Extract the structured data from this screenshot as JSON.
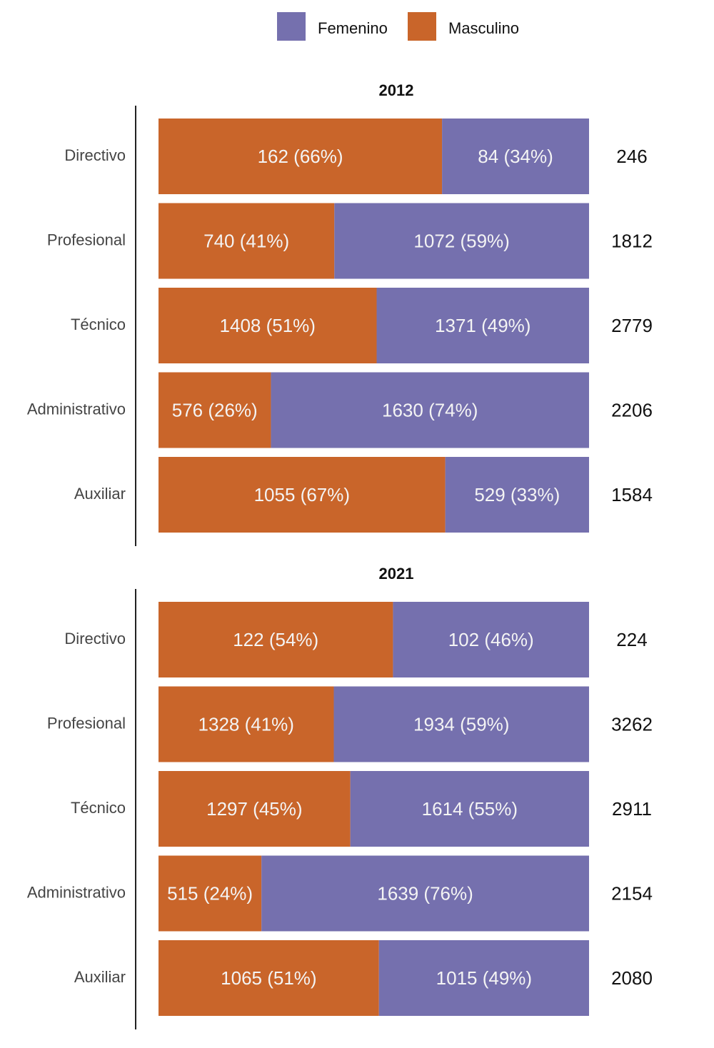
{
  "chart_data": [
    {
      "type": "bar",
      "title": "2012",
      "categories": [
        "Directivo",
        "Profesional",
        "Técnico",
        "Administrativo",
        "Auxiliar"
      ],
      "series": [
        {
          "name": "Femenino",
          "color": "#7570ae",
          "values": [
            84,
            1072,
            1371,
            1630,
            529
          ],
          "value_labels": [
            "84 (34%)",
            "1072 (59%)",
            "1371 (49%)",
            "1630 (74%)",
            "529 (33%)"
          ]
        },
        {
          "name": "Masculino",
          "color": "#c9652a",
          "values": [
            162,
            740,
            1408,
            576,
            1055
          ],
          "value_labels": [
            "162 (66%)",
            "740 (41%)",
            "1408 (51%)",
            "576 (26%)",
            "1055 (67%)"
          ]
        }
      ],
      "totals": [
        246,
        1812,
        2779,
        2206,
        1584
      ]
    },
    {
      "type": "bar",
      "title": "2021",
      "categories": [
        "Directivo",
        "Profesional",
        "Técnico",
        "Administrativo",
        "Auxiliar"
      ],
      "series": [
        {
          "name": "Femenino",
          "color": "#7570ae",
          "values": [
            102,
            1934,
            1614,
            1639,
            1015
          ],
          "value_labels": [
            "102 (46%)",
            "1934 (59%)",
            "1614 (55%)",
            "1639 (76%)",
            "1015 (49%)"
          ]
        },
        {
          "name": "Masculino",
          "color": "#c9652a",
          "values": [
            122,
            1328,
            1297,
            515,
            1065
          ],
          "value_labels": [
            "122 (54%)",
            "1328 (41%)",
            "1297 (45%)",
            "515 (24%)",
            "1065 (51%)"
          ]
        }
      ],
      "totals": [
        224,
        3262,
        2911,
        2154,
        2080
      ]
    }
  ]
}
